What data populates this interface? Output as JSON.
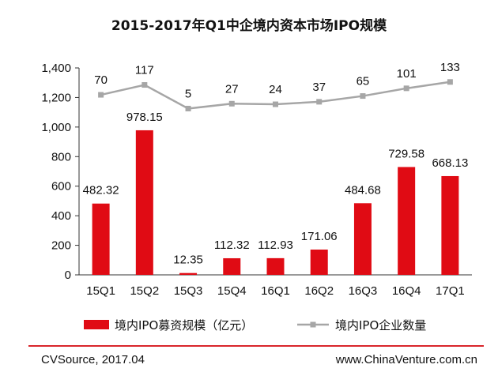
{
  "chart_data": {
    "type": "bar+line",
    "title": "2015-2017年Q1中企境内资本市场IPO规模",
    "categories": [
      "15Q1",
      "15Q2",
      "15Q3",
      "15Q4",
      "16Q1",
      "16Q2",
      "16Q3",
      "16Q4",
      "17Q1"
    ],
    "series": [
      {
        "name": "境内IPO募资规模（亿元）",
        "type": "bar",
        "color": "#e00b14",
        "values": [
          482.32,
          978.15,
          12.35,
          112.32,
          112.93,
          171.06,
          484.68,
          729.58,
          668.13
        ],
        "labels": [
          "482.32",
          "978.15",
          "12.35",
          "112.32",
          "112.93",
          "171.06",
          "484.68",
          "729.58",
          "668.13"
        ]
      },
      {
        "name": "境内IPO企业数量",
        "type": "line",
        "color": "#a6a6a6",
        "values": [
          70,
          117,
          5,
          27,
          24,
          37,
          65,
          101,
          133
        ],
        "labels": [
          "70",
          "117",
          "5",
          "27",
          "24",
          "37",
          "65",
          "101",
          "133"
        ]
      }
    ],
    "yaxis": {
      "min": 0,
      "max": 1400,
      "step": 200,
      "tick_labels": [
        "0",
        "200",
        "400",
        "600",
        "800",
        "1,000",
        "1,200",
        "1,400"
      ]
    },
    "line_positions_on_axis": [
      1218,
      1285,
      1125,
      1158,
      1154,
      1171,
      1210,
      1262,
      1305
    ],
    "legend_position": "bottom",
    "grid": false
  },
  "footer": {
    "source": "CVSource, 2017.04",
    "website": "www.ChinaVenture.com.cn",
    "rule_color": "#d9262b"
  }
}
